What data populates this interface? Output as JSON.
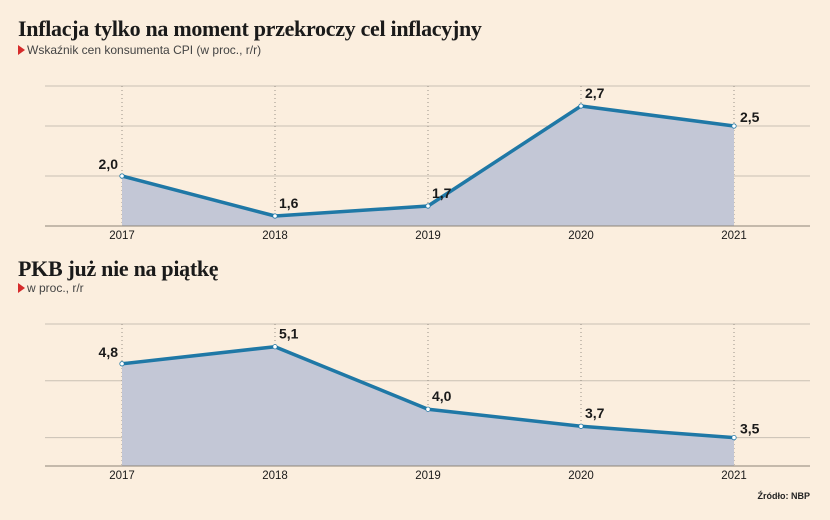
{
  "charts": [
    {
      "title": "Inflacja tylko na moment przekroczy cel inflacyjny",
      "subtitle": "Wskaźnik cen konsumenta CPI (w proc., r/r)"
    },
    {
      "title": "PKB już nie na piątkę",
      "subtitle": "w proc., r/r"
    }
  ],
  "source": "Źródło: NBP",
  "colors": {
    "line": "#1f78a6",
    "fill": "#c3c7d6",
    "background": "#fbeede",
    "grid": "#c9c0b4",
    "marker": "#ffffff"
  },
  "chart_data": [
    {
      "type": "area",
      "title": "Inflacja tylko na moment przekroczy cel inflacyjny",
      "subtitle": "Wskaźnik cen konsumenta CPI (w proc., r/r)",
      "categories": [
        "2017",
        "2018",
        "2019",
        "2020",
        "2021"
      ],
      "series": [
        {
          "values": [
            2.0,
            1.6,
            1.7,
            2.7,
            2.5
          ],
          "labels": [
            "2,0",
            "1,6",
            "1,7",
            "2,7",
            "2,5"
          ]
        }
      ],
      "ylim": [
        1.5,
        2.9
      ],
      "yticks": [
        2.0,
        2.5
      ],
      "grid": true
    },
    {
      "type": "area",
      "title": "PKB już nie na piątkę",
      "subtitle": "w proc., r/r",
      "categories": [
        "2017",
        "2018",
        "2019",
        "2020",
        "2021"
      ],
      "series": [
        {
          "values": [
            4.8,
            5.1,
            4.0,
            3.7,
            3.5
          ],
          "labels": [
            "4,8",
            "5,1",
            "4,0",
            "3,7",
            "3,5"
          ]
        }
      ],
      "ylim": [
        3.0,
        5.5
      ],
      "yticks": [
        3.5,
        4.5
      ],
      "grid": true
    }
  ]
}
